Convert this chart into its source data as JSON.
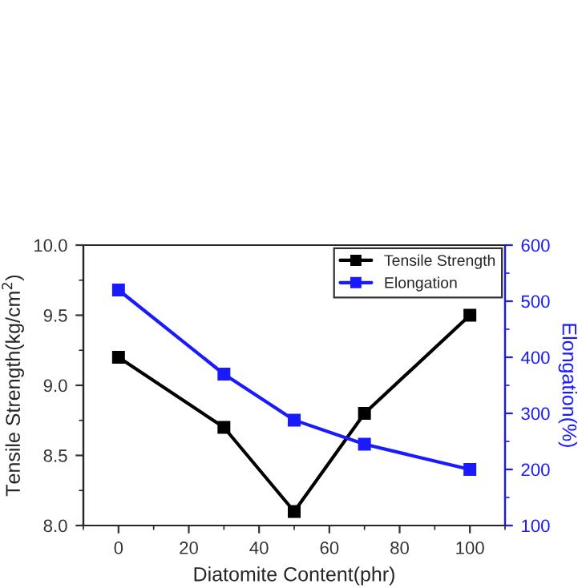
{
  "chart_data": {
    "type": "line",
    "xlabel": "Diatomite Content(phr)",
    "ylabel": "Tensile Strength(kg/cm$^{2}$)",
    "y2label": "Elongation(%)",
    "x": [
      0,
      30,
      50,
      70,
      100
    ],
    "series": [
      {
        "name": "Tensile Strength",
        "color": "#000000",
        "values": [
          9.2,
          8.7,
          8.1,
          8.8,
          9.5
        ]
      },
      {
        "name": "Elongation",
        "color": "#1a1aff",
        "axis": "y2",
        "values": [
          520,
          370,
          288,
          245,
          200
        ]
      }
    ],
    "xlim": [
      -10,
      110
    ],
    "xticks": [
      0,
      20,
      40,
      60,
      80,
      100
    ],
    "ylim": [
      8.0,
      10.0
    ],
    "yticks": [
      {
        "value": 8.0,
        "label": "8.0"
      },
      {
        "value": 8.5,
        "label": "8.5"
      },
      {
        "value": 9.0,
        "label": "9.0"
      },
      {
        "value": 9.5,
        "label": "9.5"
      },
      {
        "value": 10.0,
        "label": "10.0"
      }
    ],
    "y2lim": [
      100,
      600
    ],
    "y2ticks": [
      100,
      200,
      300,
      400,
      500,
      600
    ],
    "marker": "square",
    "line_style": "solid",
    "legend": "top right",
    "grid": false
  }
}
